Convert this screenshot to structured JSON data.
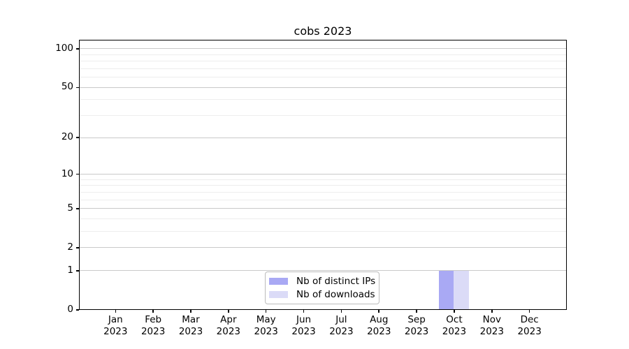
{
  "chart": {
    "title": "cobs 2023",
    "y_axis": {
      "ticks": [
        100,
        50,
        20,
        10,
        5,
        2,
        1,
        0
      ],
      "minor_ticks": [
        90,
        80,
        70,
        60,
        40,
        30,
        9,
        8,
        7,
        6,
        4,
        3
      ]
    },
    "x_axis": {
      "labels": [
        {
          "month": "Jan",
          "year": "2023"
        },
        {
          "month": "Feb",
          "year": "2023"
        },
        {
          "month": "Mar",
          "year": "2023"
        },
        {
          "month": "Apr",
          "year": "2023"
        },
        {
          "month": "May",
          "year": "2023"
        },
        {
          "month": "Jun",
          "year": "2023"
        },
        {
          "month": "Jul",
          "year": "2023"
        },
        {
          "month": "Aug",
          "year": "2023"
        },
        {
          "month": "Sep",
          "year": "2023"
        },
        {
          "month": "Oct",
          "year": "2023"
        },
        {
          "month": "Nov",
          "year": "2023"
        },
        {
          "month": "Dec",
          "year": "2023"
        }
      ]
    },
    "legend": [
      {
        "label": "Nb of distinct IPs",
        "color": "#a9a9f4"
      },
      {
        "label": "Nb of downloads",
        "color": "#dbdbf7"
      }
    ],
    "colors": {
      "grid_major": "#c9c9c9",
      "grid_minor": "#ededed",
      "axis": "#000000",
      "background": "#ffffff"
    }
  },
  "chart_data": {
    "type": "bar",
    "title": "cobs 2023",
    "categories": [
      "Jan 2023",
      "Feb 2023",
      "Mar 2023",
      "Apr 2023",
      "May 2023",
      "Jun 2023",
      "Jul 2023",
      "Aug 2023",
      "Sep 2023",
      "Oct 2023",
      "Nov 2023",
      "Dec 2023"
    ],
    "series": [
      {
        "name": "Nb of distinct IPs",
        "color": "#a9a9f4",
        "values": [
          0,
          0,
          0,
          0,
          0,
          0,
          0,
          0,
          0,
          1,
          0,
          0
        ]
      },
      {
        "name": "Nb of downloads",
        "color": "#dbdbf7",
        "values": [
          0,
          0,
          0,
          0,
          0,
          0,
          0,
          0,
          0,
          1,
          0,
          0
        ]
      }
    ],
    "yscale": "log1p",
    "ylim": [
      0,
      117
    ],
    "ytick_values": [
      0,
      1,
      2,
      5,
      10,
      20,
      50,
      100
    ],
    "grid": "horizontal-only",
    "legend_position": "bottom-center-inside",
    "xlabel": "",
    "ylabel": ""
  }
}
